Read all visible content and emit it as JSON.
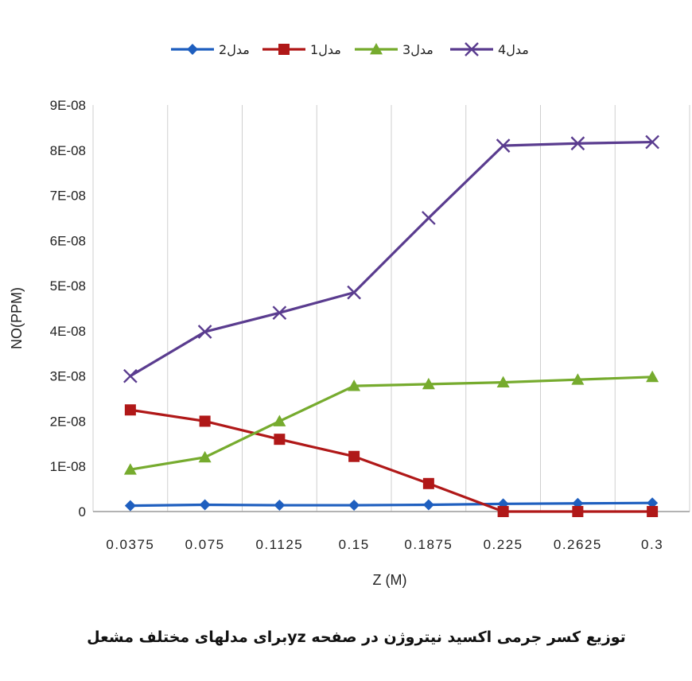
{
  "chart_data": {
    "type": "line",
    "title": "",
    "caption": "توزیع کسر جرمی اکسید نیتروژن در صفحه yzبرای مدلهای مختلف مشعل",
    "xlabel": "Z (M)",
    "ylabel": "NO(PPM)",
    "x": [
      0.0375,
      0.075,
      0.1125,
      0.15,
      0.1875,
      0.225,
      0.2625,
      0.3
    ],
    "categories": [
      "0.0375",
      "0.075",
      "0.1125",
      "0.15",
      "0.1875",
      "0.225",
      "0.2625",
      "0.3"
    ],
    "ylim": [
      0,
      9e-08
    ],
    "yticks": [
      "0",
      "1E-08",
      "2E-08",
      "3E-08",
      "4E-08",
      "5E-08",
      "6E-08",
      "7E-08",
      "8E-08",
      "9E-08"
    ],
    "grid": "vertical",
    "legend_position": "top",
    "series": [
      {
        "name": "مدل2",
        "color": "#1f5fbf",
        "marker": "diamond",
        "values": [
          1.3e-09,
          1.5e-09,
          1.4e-09,
          1.4e-09,
          1.5e-09,
          1.7e-09,
          1.8e-09,
          1.9e-09
        ]
      },
      {
        "name": "مدل1",
        "color": "#b01818",
        "marker": "square",
        "values": [
          2.25e-08,
          2e-08,
          1.6e-08,
          1.22e-08,
          6.2e-09,
          0,
          0,
          0
        ]
      },
      {
        "name": "مدل3",
        "color": "#76ab2e",
        "marker": "triangle",
        "values": [
          9.3e-09,
          1.2e-08,
          2e-08,
          2.78e-08,
          2.82e-08,
          2.86e-08,
          2.92e-08,
          2.98e-08
        ]
      },
      {
        "name": "مدل4",
        "color": "#5a3c8f",
        "marker": "x",
        "values": [
          3e-08,
          3.98e-08,
          4.4e-08,
          4.85e-08,
          6.5e-08,
          8.1e-08,
          8.15e-08,
          8.18e-08
        ]
      }
    ]
  }
}
